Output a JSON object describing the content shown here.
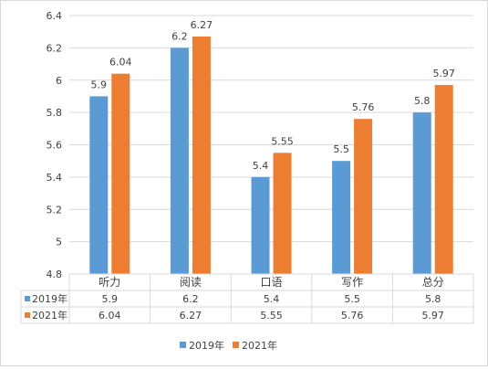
{
  "chart_data": {
    "type": "bar",
    "categories": [
      "听力",
      "阅读",
      "口语",
      "写作",
      "总分"
    ],
    "series": [
      {
        "name": "2019年",
        "values": [
          5.9,
          6.2,
          5.4,
          5.5,
          5.8
        ],
        "color": "#5b9bd5"
      },
      {
        "name": "2021年",
        "values": [
          6.04,
          6.27,
          5.55,
          5.76,
          5.97
        ],
        "color": "#ed7d31"
      }
    ],
    "data_labels": [
      [
        "5.9",
        "6.2",
        "5.4",
        "5.5",
        "5.8"
      ],
      [
        "6.04",
        "6.27",
        "5.55",
        "5.76",
        "5.97"
      ]
    ],
    "ylim": [
      4.8,
      6.4
    ],
    "yticks": [
      "4.8",
      "5",
      "5.2",
      "5.4",
      "5.6",
      "5.8",
      "6",
      "6.2",
      "6.4"
    ],
    "grid": true,
    "legend_position": "bottom",
    "data_table": true
  }
}
